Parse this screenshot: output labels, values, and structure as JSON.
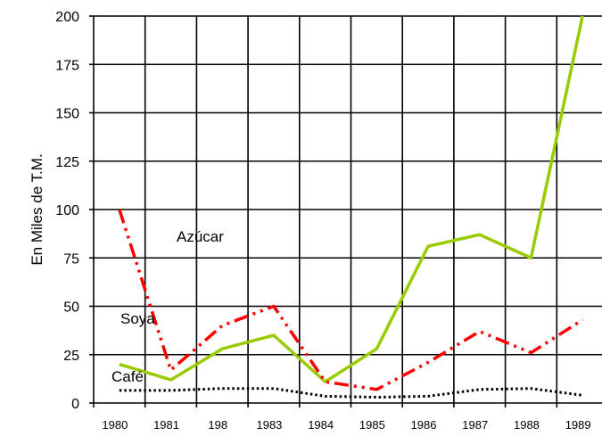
{
  "chart_data": {
    "type": "line",
    "title": "",
    "xlabel": "",
    "ylabel": "En Miles de T.M.",
    "categories": [
      "1980",
      "1981",
      "198",
      "1983",
      "1984",
      "1985",
      "1986",
      "1987",
      "1988",
      "1989"
    ],
    "ylim": [
      0,
      200
    ],
    "yticks": [
      0,
      25,
      50,
      75,
      100,
      125,
      150,
      175,
      200
    ],
    "grid": true,
    "series": [
      {
        "name": "Azúcar",
        "color": "#99CC00",
        "style": "solid",
        "values": [
          20,
          12,
          28,
          35,
          11,
          28,
          81,
          87,
          75,
          200
        ]
      },
      {
        "name": "Soya",
        "color": "#FF0000",
        "style": "dash-dot-dot",
        "values": [
          100,
          17,
          40,
          50,
          11,
          7,
          21,
          37,
          26,
          43
        ]
      },
      {
        "name": "Café",
        "color": "#000000",
        "style": "dotted",
        "values": [
          6.5,
          6.5,
          7.5,
          7.5,
          3.5,
          3,
          3.5,
          7,
          7.5,
          4
        ]
      }
    ],
    "annotations": [
      {
        "text": "Azúcar"
      },
      {
        "text": "Soya"
      },
      {
        "text": "Café"
      }
    ]
  }
}
